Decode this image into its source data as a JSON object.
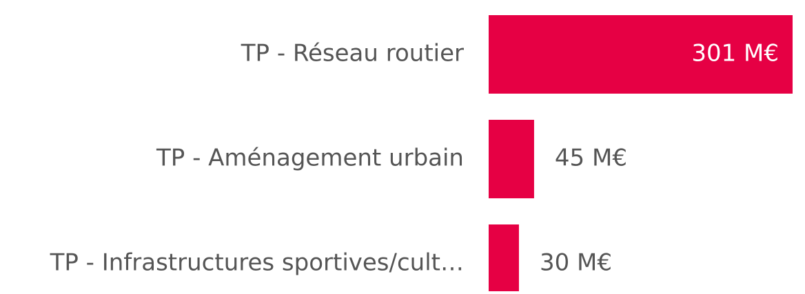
{
  "chart_data": {
    "type": "bar",
    "orientation": "horizontal",
    "categories": [
      "TP - Réseau routier",
      "TP - Aménagement urbain",
      "TP - Infrastructures sportives/cult…"
    ],
    "values": [
      301,
      45,
      30
    ],
    "value_labels": [
      "301 M€",
      "45 M€",
      "30 M€"
    ],
    "color": "#e60044"
  }
}
